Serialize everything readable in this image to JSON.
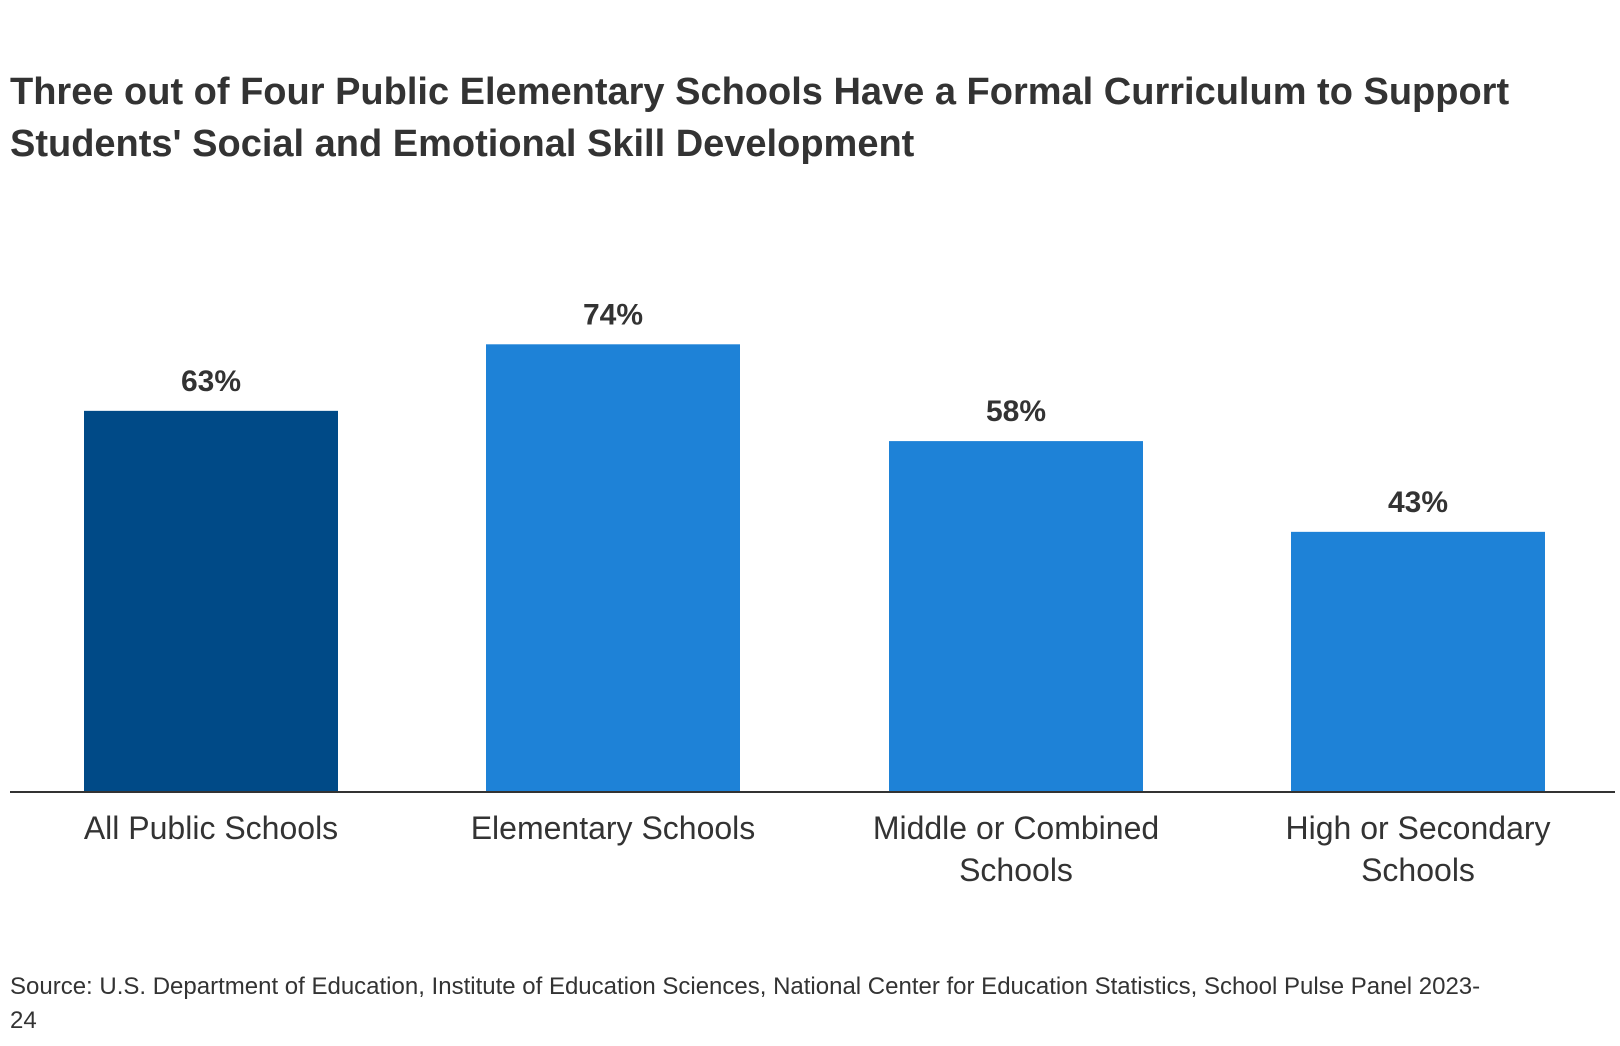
{
  "title": "Three out of Four Public Elementary Schools Have a Formal Curriculum to Support Students' Social and Emotional Skill Development",
  "source": "Source: U.S. Department of Education, Institute of Education Sciences, National Center for Education Statistics, School Pulse Panel 2023-24",
  "chart_data": {
    "type": "bar",
    "title": "Three out of Four Public Elementary Schools Have a Formal Curriculum to Support Students' Social and Emotional Skill Development",
    "xlabel": "",
    "ylabel": "",
    "categories": [
      [
        "All Public Schools"
      ],
      [
        "Elementary Schools"
      ],
      [
        "Middle or Combined",
        "Schools"
      ],
      [
        "High or Secondary",
        "Schools"
      ]
    ],
    "values": [
      63,
      74,
      58,
      43
    ],
    "data_labels": [
      "63%",
      "74%",
      "58%",
      "43%"
    ],
    "unit": "%",
    "colors": [
      "#004a87",
      "#1e82d7",
      "#1e82d7",
      "#1e82d7"
    ],
    "ylim": [
      0,
      100
    ],
    "grid": false,
    "legend": "none"
  }
}
